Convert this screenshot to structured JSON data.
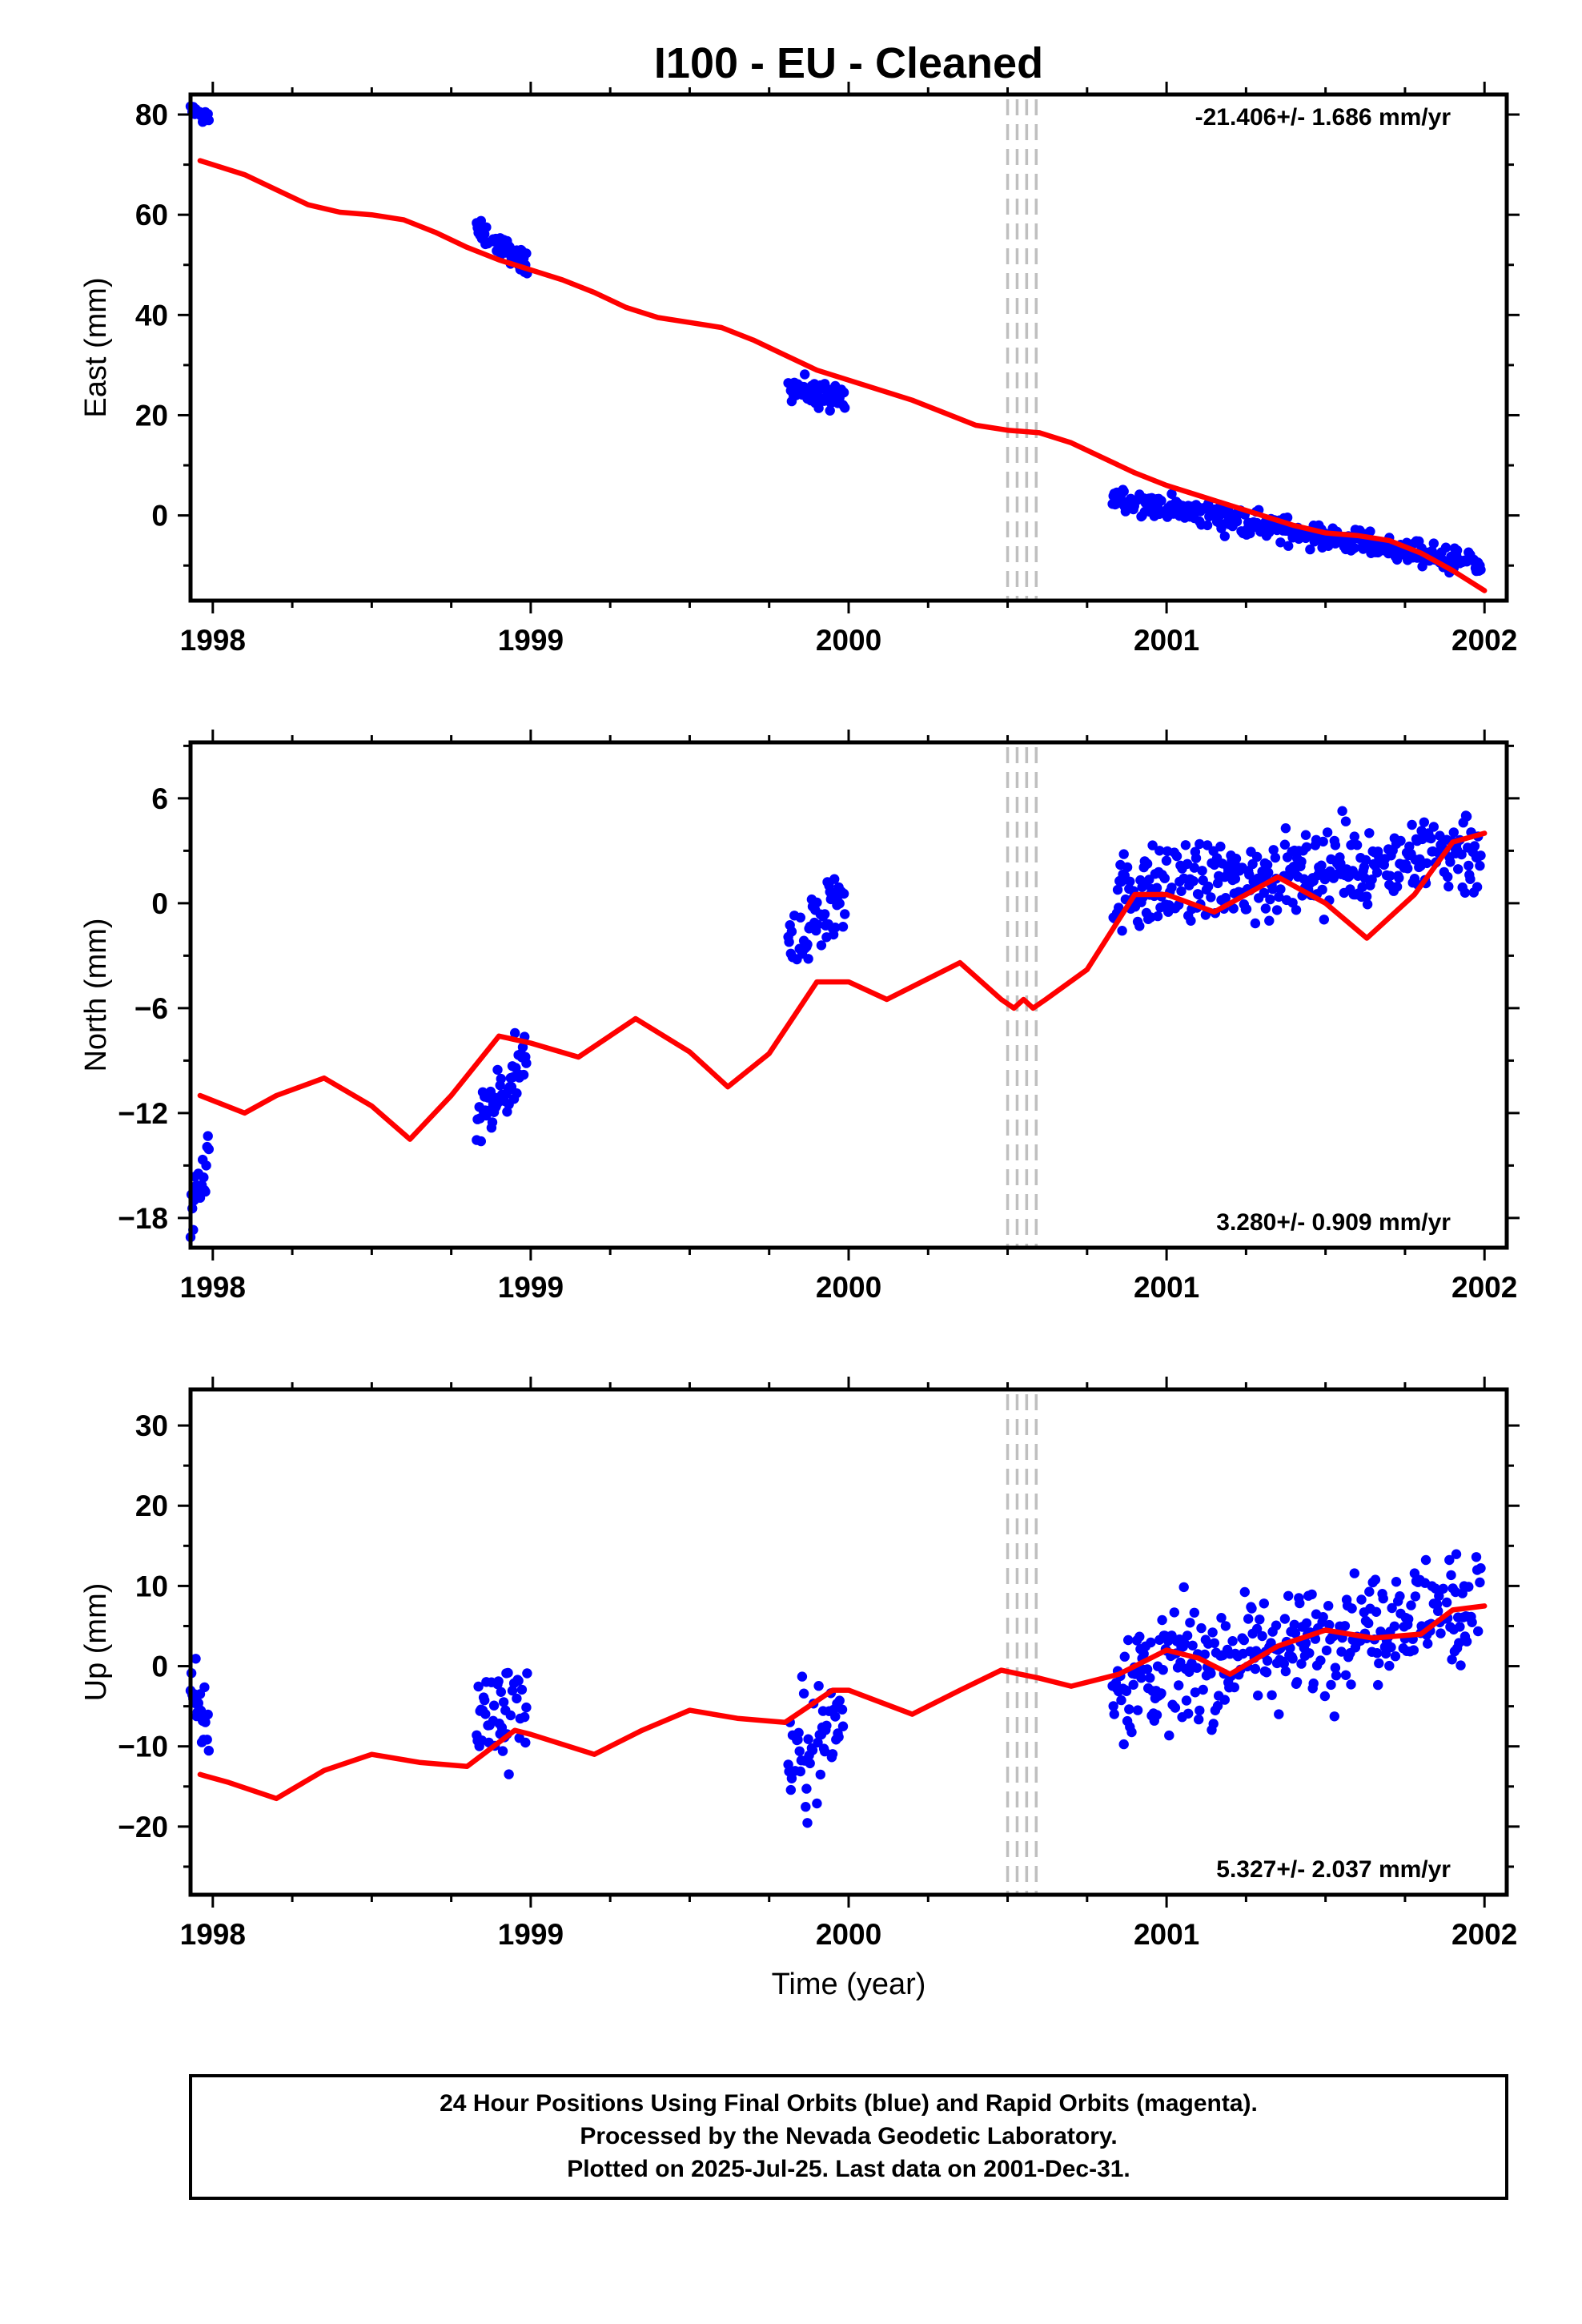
{
  "title": "I100  - EU - Cleaned",
  "xlabel": "Time (year)",
  "caption": [
    "24 Hour Positions Using Final Orbits (blue) and Rapid Orbits (magenta).",
    "Processed by the Nevada Geodetic Laboratory.",
    "Plotted on 2025-Jul-25. Last data on 2001-Dec-31."
  ],
  "colors": {
    "final_orbits": "#0000ff",
    "model": "#ff0000",
    "offset_lines": "#bfbfbf",
    "frame": "#000000"
  },
  "chart_data": [
    {
      "type": "scatter",
      "name": "east",
      "ylabel": "East (mm)",
      "rate": "-21.406+/- 1.686 mm/yr",
      "rate_position": "top-right",
      "xlim": [
        1997.93,
        2002.07
      ],
      "ylim": [
        -17,
        84
      ],
      "xticks": [
        "1998",
        "1999",
        "2000",
        "2001",
        "2002"
      ],
      "yticks": [
        "0",
        "20",
        "40",
        "60",
        "80"
      ],
      "offset_epochs": [
        2000.5,
        2000.53,
        2000.56,
        2000.59
      ],
      "segments": [
        {
          "start": 1997.93,
          "end": 1997.99,
          "trend": [
            80.8,
            79.2
          ],
          "spread": 1.5
        },
        {
          "start": 1998.83,
          "end": 1998.99,
          "trend": [
            57.0,
            50.0
          ],
          "spread": 2.0
        },
        {
          "start": 1999.81,
          "end": 1999.99,
          "trend": [
            26.0,
            22.5
          ],
          "spread": 2.5
        },
        {
          "start": 2000.83,
          "end": 2001.99,
          "trend": [
            3.5,
            -10.0
          ],
          "spread": 2.3
        }
      ],
      "model_curve": {
        "x": [
          1997.96,
          1998.1,
          1998.2,
          1998.3,
          1998.4,
          1998.5,
          1998.6,
          1998.7,
          1998.8,
          1998.9,
          1999.0,
          1999.1,
          1999.2,
          1999.3,
          1999.4,
          1999.5,
          1999.6,
          1999.7,
          1999.8,
          1999.9,
          2000.0,
          2000.1,
          2000.2,
          2000.3,
          2000.4,
          2000.5,
          2000.6,
          2000.7,
          2000.8,
          2000.9,
          2001.0,
          2001.1,
          2001.2,
          2001.3,
          2001.4,
          2001.5,
          2001.6,
          2001.7,
          2001.8,
          2001.9,
          2002.0
        ],
        "y": [
          70.8,
          68.0,
          65.0,
          62.0,
          60.5,
          60.0,
          59.0,
          56.5,
          53.5,
          51.0,
          49.0,
          47.0,
          44.5,
          41.5,
          39.5,
          38.5,
          37.5,
          35.0,
          32.0,
          29.0,
          27.0,
          25.0,
          23.0,
          20.5,
          18.0,
          17.0,
          16.5,
          14.5,
          11.5,
          8.5,
          6.0,
          4.0,
          2.0,
          0.0,
          -2.0,
          -3.5,
          -4.0,
          -5.0,
          -7.5,
          -11.0,
          -15.0
        ]
      }
    },
    {
      "type": "scatter",
      "name": "north",
      "ylabel": "North (mm)",
      "rate": "3.280+/- 0.909 mm/yr",
      "rate_position": "bottom-right",
      "xlim": [
        1997.93,
        2002.07
      ],
      "ylim": [
        -19.7,
        9.2
      ],
      "xticks": [
        "1998",
        "1999",
        "2000",
        "2001",
        "2002"
      ],
      "yticks": [
        "6",
        "0",
        "−6",
        "−12",
        "−18"
      ],
      "ytick_values": [
        6,
        0,
        -6,
        -12,
        -18
      ],
      "offset_epochs": [
        2000.5,
        2000.53,
        2000.56,
        2000.59
      ],
      "segments": [
        {
          "start": 1997.93,
          "end": 1997.99,
          "trend": [
            -18.5,
            -14.0
          ],
          "spread": 1.5
        },
        {
          "start": 1998.83,
          "end": 1998.99,
          "trend": [
            -13.0,
            -9.0
          ],
          "spread": 2.0
        },
        {
          "start": 1999.81,
          "end": 1999.99,
          "trend": [
            -2.5,
            0.5
          ],
          "spread": 2.0
        },
        {
          "start": 2000.83,
          "end": 2001.99,
          "trend": [
            0.5,
            3.0
          ],
          "spread": 2.2
        }
      ],
      "model_curve": {
        "x": [
          1997.96,
          1998.1,
          1998.2,
          1998.35,
          1998.5,
          1998.62,
          1998.75,
          1998.9,
          1999.0,
          1999.15,
          1999.33,
          1999.5,
          1999.62,
          1999.75,
          1999.9,
          2000.0,
          2000.12,
          2000.35,
          2000.48,
          2000.52,
          2000.55,
          2000.58,
          2000.62,
          2000.75,
          2000.9,
          2001.0,
          2001.15,
          2001.35,
          2001.5,
          2001.63,
          2001.78,
          2001.9,
          2002.0
        ],
        "y": [
          -11.0,
          -12.0,
          -11.0,
          -10.0,
          -11.6,
          -13.5,
          -11.0,
          -7.6,
          -8.0,
          -8.8,
          -6.6,
          -8.5,
          -10.5,
          -8.6,
          -4.5,
          -4.5,
          -5.5,
          -3.4,
          -5.5,
          -6.0,
          -5.5,
          -6.0,
          -5.5,
          -3.8,
          0.5,
          0.5,
          -0.5,
          1.5,
          0.0,
          -2.0,
          0.5,
          3.5,
          4.0
        ]
      }
    },
    {
      "type": "scatter",
      "name": "up",
      "ylabel": "Up (mm)",
      "rate": "5.327+/- 2.037 mm/yr",
      "rate_position": "bottom-right",
      "xlim": [
        1997.93,
        2002.07
      ],
      "ylim": [
        -28.5,
        34.5
      ],
      "xticks": [
        "1998",
        "1999",
        "2000",
        "2001",
        "2002"
      ],
      "yticks": [
        "30",
        "20",
        "10",
        "0",
        "−10",
        "−20"
      ],
      "ytick_values": [
        30,
        20,
        10,
        0,
        -10,
        -20
      ],
      "offset_epochs": [
        2000.5,
        2000.53,
        2000.56,
        2000.59
      ],
      "segments": [
        {
          "start": 1997.93,
          "end": 1997.99,
          "trend": [
            -4.0,
            -8.0
          ],
          "spread": 4.5
        },
        {
          "start": 1998.83,
          "end": 1998.99,
          "trend": [
            -6.0,
            -5.0
          ],
          "spread": 6.0
        },
        {
          "start": 1999.81,
          "end": 1999.99,
          "trend": [
            -12.0,
            -7.0
          ],
          "spread": 7.0
        },
        {
          "start": 2000.83,
          "end": 2001.99,
          "trend": [
            -2.0,
            8.0
          ],
          "spread": 6.5
        }
      ],
      "model_curve": {
        "x": [
          1997.96,
          1998.05,
          1998.2,
          1998.35,
          1998.5,
          1998.65,
          1998.8,
          1998.95,
          1999.0,
          1999.2,
          1999.35,
          1999.5,
          1999.65,
          1999.8,
          1999.95,
          2000.0,
          2000.2,
          2000.35,
          2000.48,
          2000.6,
          2000.7,
          2000.85,
          2001.0,
          2001.1,
          2001.2,
          2001.35,
          2001.5,
          2001.65,
          2001.8,
          2001.9,
          2002.0
        ],
        "y": [
          -13.5,
          -14.5,
          -16.5,
          -13.0,
          -11.0,
          -12.0,
          -12.5,
          -8.0,
          -8.5,
          -11.0,
          -8.0,
          -5.5,
          -6.5,
          -7.0,
          -3.0,
          -3.0,
          -6.0,
          -3.0,
          -0.5,
          -1.5,
          -2.5,
          -1.0,
          2.0,
          1.0,
          -1.0,
          2.5,
          4.5,
          3.5,
          4.0,
          7.0,
          7.5
        ]
      }
    }
  ]
}
